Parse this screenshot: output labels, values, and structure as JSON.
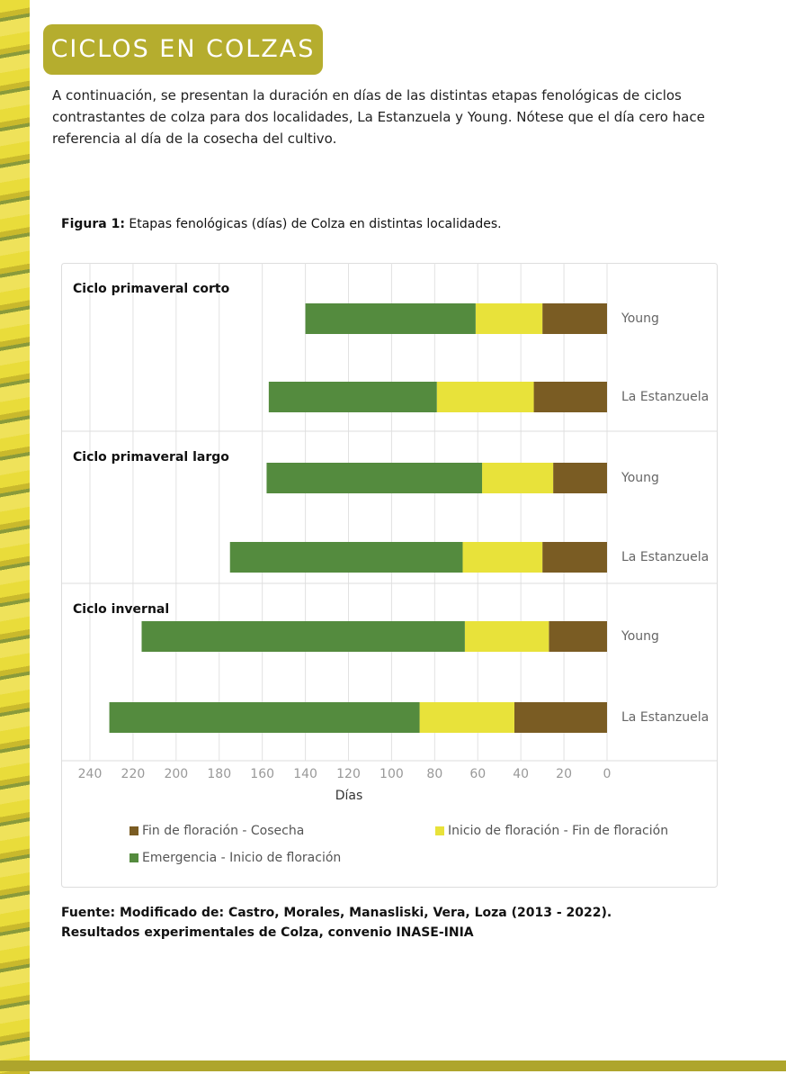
{
  "header": {
    "title": "CICLOS EN COLZAS"
  },
  "intro": "A continuación, se presentan la duración en días de las distintas etapas fenológicas de ciclos contrastantes de colza para dos localidades, La Estanzuela y Young. Nótese que el día cero hace referencia al día de la cosecha del cultivo.",
  "figure": {
    "label": "Figura 1:",
    "caption": "Etapas fenológicas (días) de Colza en distintas localidades."
  },
  "chart_data": {
    "type": "stacked-bar-horizontal",
    "groups": [
      "Ciclo primaveral corto",
      "Ciclo primaveral largo",
      "Ciclo invernal"
    ],
    "categories": [
      "Young",
      "La Estanzuela",
      "Young",
      "La Estanzuela",
      "Young",
      "La Estanzuela"
    ],
    "series": [
      {
        "name": "Fin de floración - Cosecha",
        "color": "#7a5c23",
        "values": [
          30,
          34,
          25,
          30,
          27,
          43
        ]
      },
      {
        "name": "Inicio de floración - Fin de floración",
        "color": "#e8e23a",
        "values": [
          31,
          45,
          33,
          37,
          39,
          44
        ]
      },
      {
        "name": "Emergencia - Inicio de floración",
        "color": "#548b3e",
        "values": [
          79,
          78,
          100,
          108,
          150,
          144
        ]
      }
    ],
    "xlabel": "Días",
    "xlim": [
      0,
      240
    ],
    "xticks": [
      0,
      20,
      40,
      60,
      80,
      100,
      120,
      140,
      160,
      180,
      200,
      220,
      240
    ],
    "x_reversed": true,
    "grid": true,
    "legend": "bottom"
  },
  "source": "Fuente: Modificado de: Castro, Morales, Manasliski, Vera, Loza (2013 - 2022). Resultados experimentales de Colza, convenio INASE-INIA"
}
